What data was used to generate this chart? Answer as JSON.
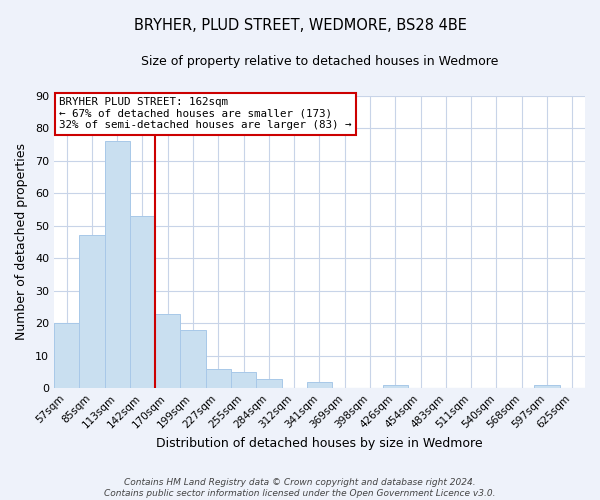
{
  "title": "BRYHER, PLUD STREET, WEDMORE, BS28 4BE",
  "subtitle": "Size of property relative to detached houses in Wedmore",
  "xlabel": "Distribution of detached houses by size in Wedmore",
  "ylabel": "Number of detached properties",
  "bar_color": "#c9dff0",
  "bar_edge_color": "#a8c8e8",
  "categories": [
    "57sqm",
    "85sqm",
    "113sqm",
    "142sqm",
    "170sqm",
    "199sqm",
    "227sqm",
    "255sqm",
    "284sqm",
    "312sqm",
    "341sqm",
    "369sqm",
    "398sqm",
    "426sqm",
    "454sqm",
    "483sqm",
    "511sqm",
    "540sqm",
    "568sqm",
    "597sqm",
    "625sqm"
  ],
  "values": [
    20,
    47,
    76,
    53,
    23,
    18,
    6,
    5,
    3,
    0,
    2,
    0,
    0,
    1,
    0,
    0,
    0,
    0,
    0,
    1,
    0
  ],
  "ylim": [
    0,
    90
  ],
  "yticks": [
    0,
    10,
    20,
    30,
    40,
    50,
    60,
    70,
    80,
    90
  ],
  "property_line_color": "#cc0000",
  "annotation_line1": "BRYHER PLUD STREET: 162sqm",
  "annotation_line2": "← 67% of detached houses are smaller (173)",
  "annotation_line3": "32% of semi-detached houses are larger (83) →",
  "annotation_box_color": "white",
  "annotation_box_edge": "#cc0000",
  "footer_line1": "Contains HM Land Registry data © Crown copyright and database right 2024.",
  "footer_line2": "Contains public sector information licensed under the Open Government Licence v3.0.",
  "background_color": "#eef2fa",
  "plot_background_color": "white",
  "grid_color": "#c8d4e8"
}
